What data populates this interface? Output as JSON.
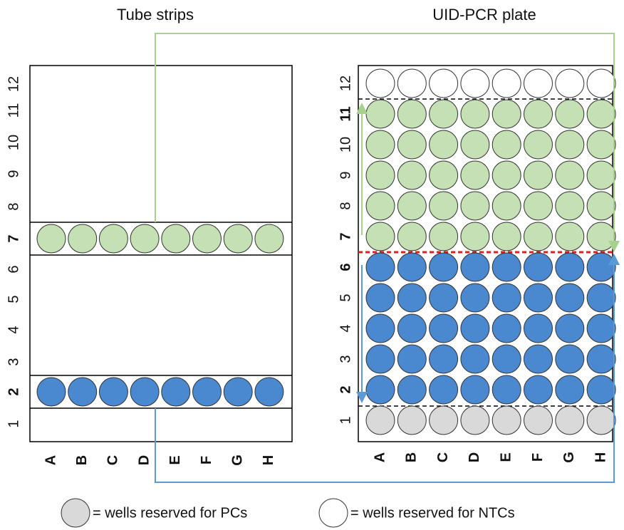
{
  "titles": {
    "left": "Tube strips",
    "right": "UID-PCR plate"
  },
  "rows": [
    "1",
    "2",
    "3",
    "4",
    "5",
    "6",
    "7",
    "8",
    "9",
    "10",
    "11",
    "12"
  ],
  "columns": [
    "A",
    "B",
    "C",
    "D",
    "E",
    "F",
    "G",
    "H"
  ],
  "legend": [
    "= wells reserved for PCs",
    "= wells reserved for NTCs"
  ]
}
